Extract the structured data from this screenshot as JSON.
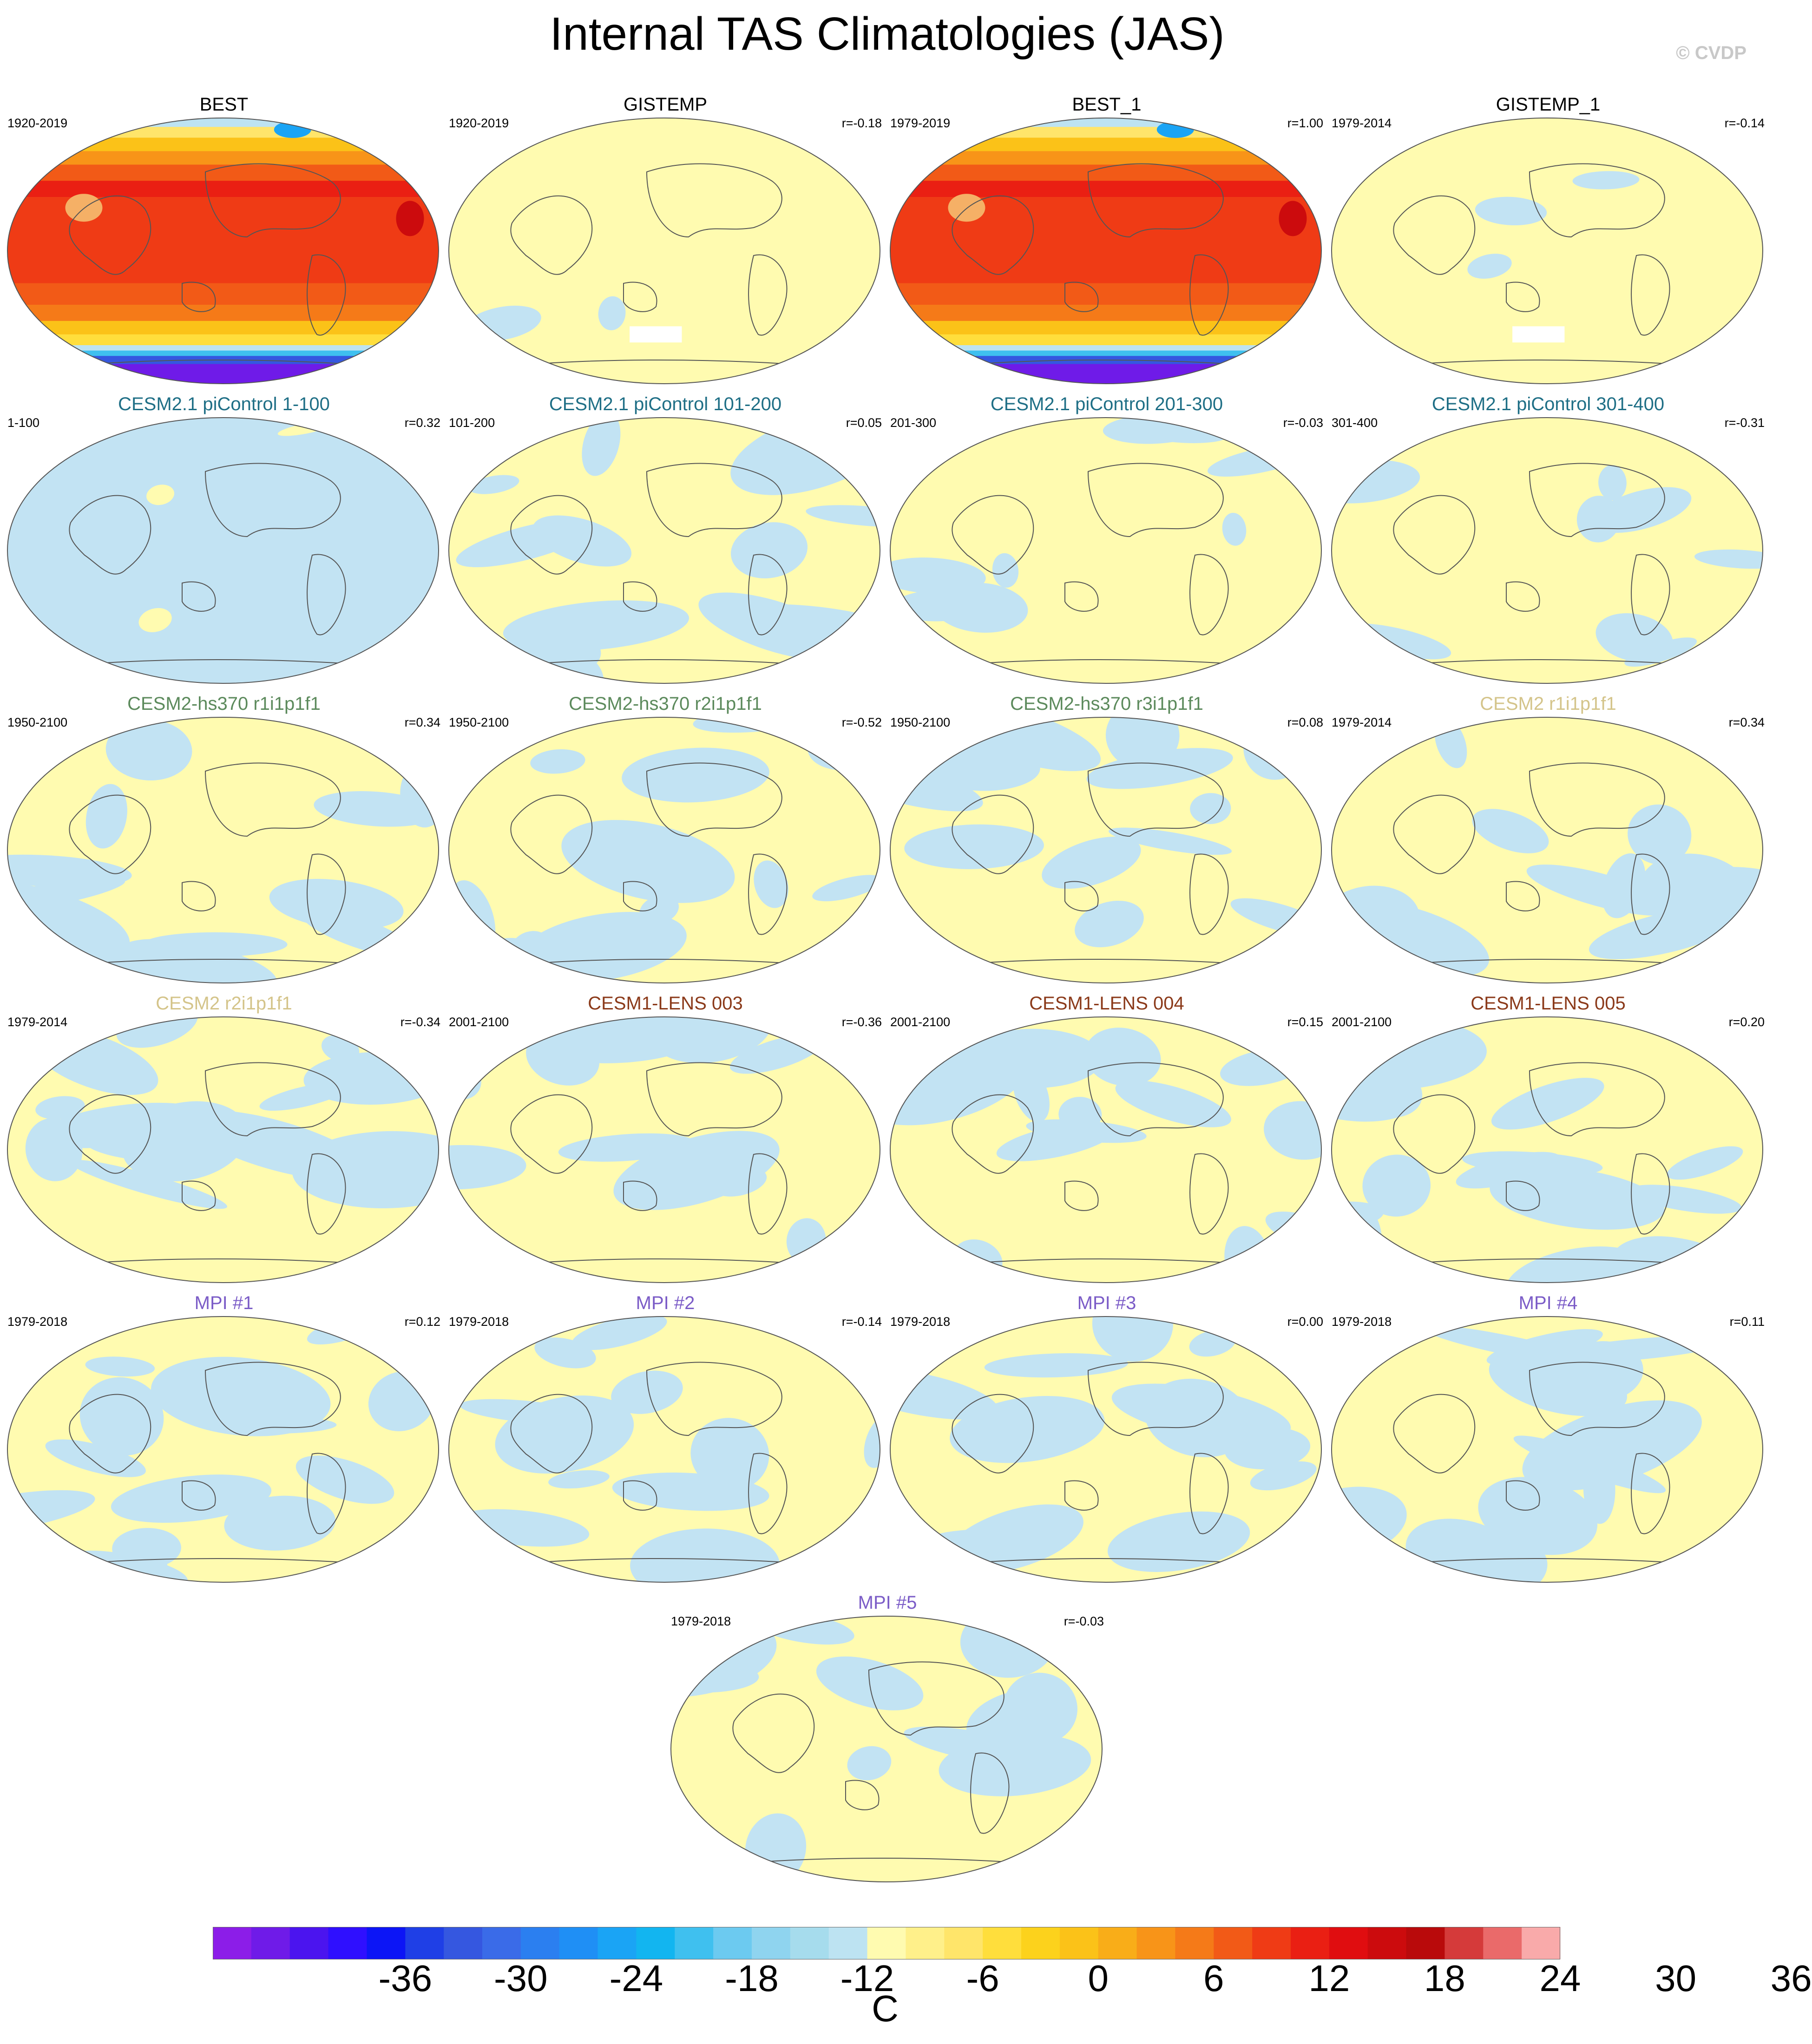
{
  "figure": {
    "title": "Internal TAS Climatologies (JAS)",
    "credit": "© CVDP"
  },
  "panels": [
    {
      "title": "BEST",
      "period": "1920-2019",
      "corr": "",
      "title_color": "#000000",
      "kind": "clim"
    },
    {
      "title": "GISTEMP",
      "period": "1920-2019",
      "corr": "r=-0.18",
      "title_color": "#000000",
      "kind": "anom_warm"
    },
    {
      "title": "BEST_1",
      "period": "1979-2019",
      "corr": "r=1.00",
      "title_color": "#000000",
      "kind": "clim"
    },
    {
      "title": "GISTEMP_1",
      "period": "1979-2014",
      "corr": "r=-0.14",
      "title_color": "#000000",
      "kind": "anom_warm"
    },
    {
      "title": "CESM2.1 piControl 1-100",
      "period": "1-100",
      "corr": "r=0.32",
      "title_color": "#1f6f86",
      "kind": "anom_cool"
    },
    {
      "title": "CESM2.1 piControl 101-200",
      "period": "101-200",
      "corr": "r=0.05",
      "title_color": "#1f6f86",
      "kind": "anom_mixed"
    },
    {
      "title": "CESM2.1 piControl 201-300",
      "period": "201-300",
      "corr": "r=-0.03",
      "title_color": "#1f6f86",
      "kind": "anom_warm_mix"
    },
    {
      "title": "CESM2.1 piControl 301-400",
      "period": "301-400",
      "corr": "r=-0.31",
      "title_color": "#1f6f86",
      "kind": "anom_warm_mix"
    },
    {
      "title": "CESM2-hs370 r1i1p1f1",
      "period": "1950-2100",
      "corr": "r=0.34",
      "title_color": "#5c8a5c",
      "kind": "anom_mixed"
    },
    {
      "title": "CESM2-hs370 r2i1p1f1",
      "period": "1950-2100",
      "corr": "r=-0.52",
      "title_color": "#5c8a5c",
      "kind": "anom_mixed"
    },
    {
      "title": "CESM2-hs370 r3i1p1f1",
      "period": "1950-2100",
      "corr": "r=0.08",
      "title_color": "#5c8a5c",
      "kind": "anom_mixed"
    },
    {
      "title": "CESM2 r1i1p1f1",
      "period": "1979-2014",
      "corr": "r=0.34",
      "title_color": "#d4c48a",
      "kind": "anom_mixed"
    },
    {
      "title": "CESM2 r2i1p1f1",
      "period": "1979-2014",
      "corr": "r=-0.34",
      "title_color": "#d4c48a",
      "kind": "anom_mixed"
    },
    {
      "title": "CESM1-LENS 003",
      "period": "2001-2100",
      "corr": "r=-0.36",
      "title_color": "#8b3a1a",
      "kind": "anom_mixed"
    },
    {
      "title": "CESM1-LENS 004",
      "period": "2001-2100",
      "corr": "r=0.15",
      "title_color": "#8b3a1a",
      "kind": "anom_mixed"
    },
    {
      "title": "CESM1-LENS 005",
      "period": "2001-2100",
      "corr": "r=0.20",
      "title_color": "#8b3a1a",
      "kind": "anom_mixed"
    },
    {
      "title": "MPI #1",
      "period": "1979-2018",
      "corr": "r=0.12",
      "title_color": "#7b5cc7",
      "kind": "anom_mixed"
    },
    {
      "title": "MPI #2",
      "period": "1979-2018",
      "corr": "r=-0.14",
      "title_color": "#7b5cc7",
      "kind": "anom_mixed"
    },
    {
      "title": "MPI #3",
      "period": "1979-2018",
      "corr": "r=0.00",
      "title_color": "#7b5cc7",
      "kind": "anom_mixed"
    },
    {
      "title": "MPI #4",
      "period": "1979-2018",
      "corr": "r=0.11",
      "title_color": "#7b5cc7",
      "kind": "anom_mixed"
    },
    {
      "title": "MPI #5",
      "period": "1979-2018",
      "corr": "r=-0.03",
      "title_color": "#7b5cc7",
      "kind": "anom_mixed"
    }
  ],
  "colorbar": {
    "units": "C",
    "tick_labels": [
      "-36",
      "-30",
      "-24",
      "-18",
      "-12",
      "-6",
      "0",
      "6",
      "12",
      "18",
      "24",
      "30",
      "36"
    ],
    "colors": [
      "#8c1de8",
      "#6f1be8",
      "#4b14ef",
      "#2f0fff",
      "#0c15f6",
      "#1f3fe6",
      "#3557e0",
      "#3a6be8",
      "#2b7ff0",
      "#1f8ff5",
      "#1aa4f5",
      "#12b5f0",
      "#3fc0ef",
      "#6ccaf0",
      "#8fd4ef",
      "#a6dced",
      "#bde3f2",
      "#fffbb0",
      "#fff08a",
      "#ffe56a",
      "#ffde3c",
      "#fcd21c",
      "#fbc218",
      "#f9ad18",
      "#f89418",
      "#f57a18",
      "#f25a17",
      "#ef3b15",
      "#ea1f13",
      "#e00d10",
      "#cc0b0d",
      "#b90a0b",
      "#d53a3a",
      "#ea6a6a",
      "#f9aaaa"
    ]
  }
}
